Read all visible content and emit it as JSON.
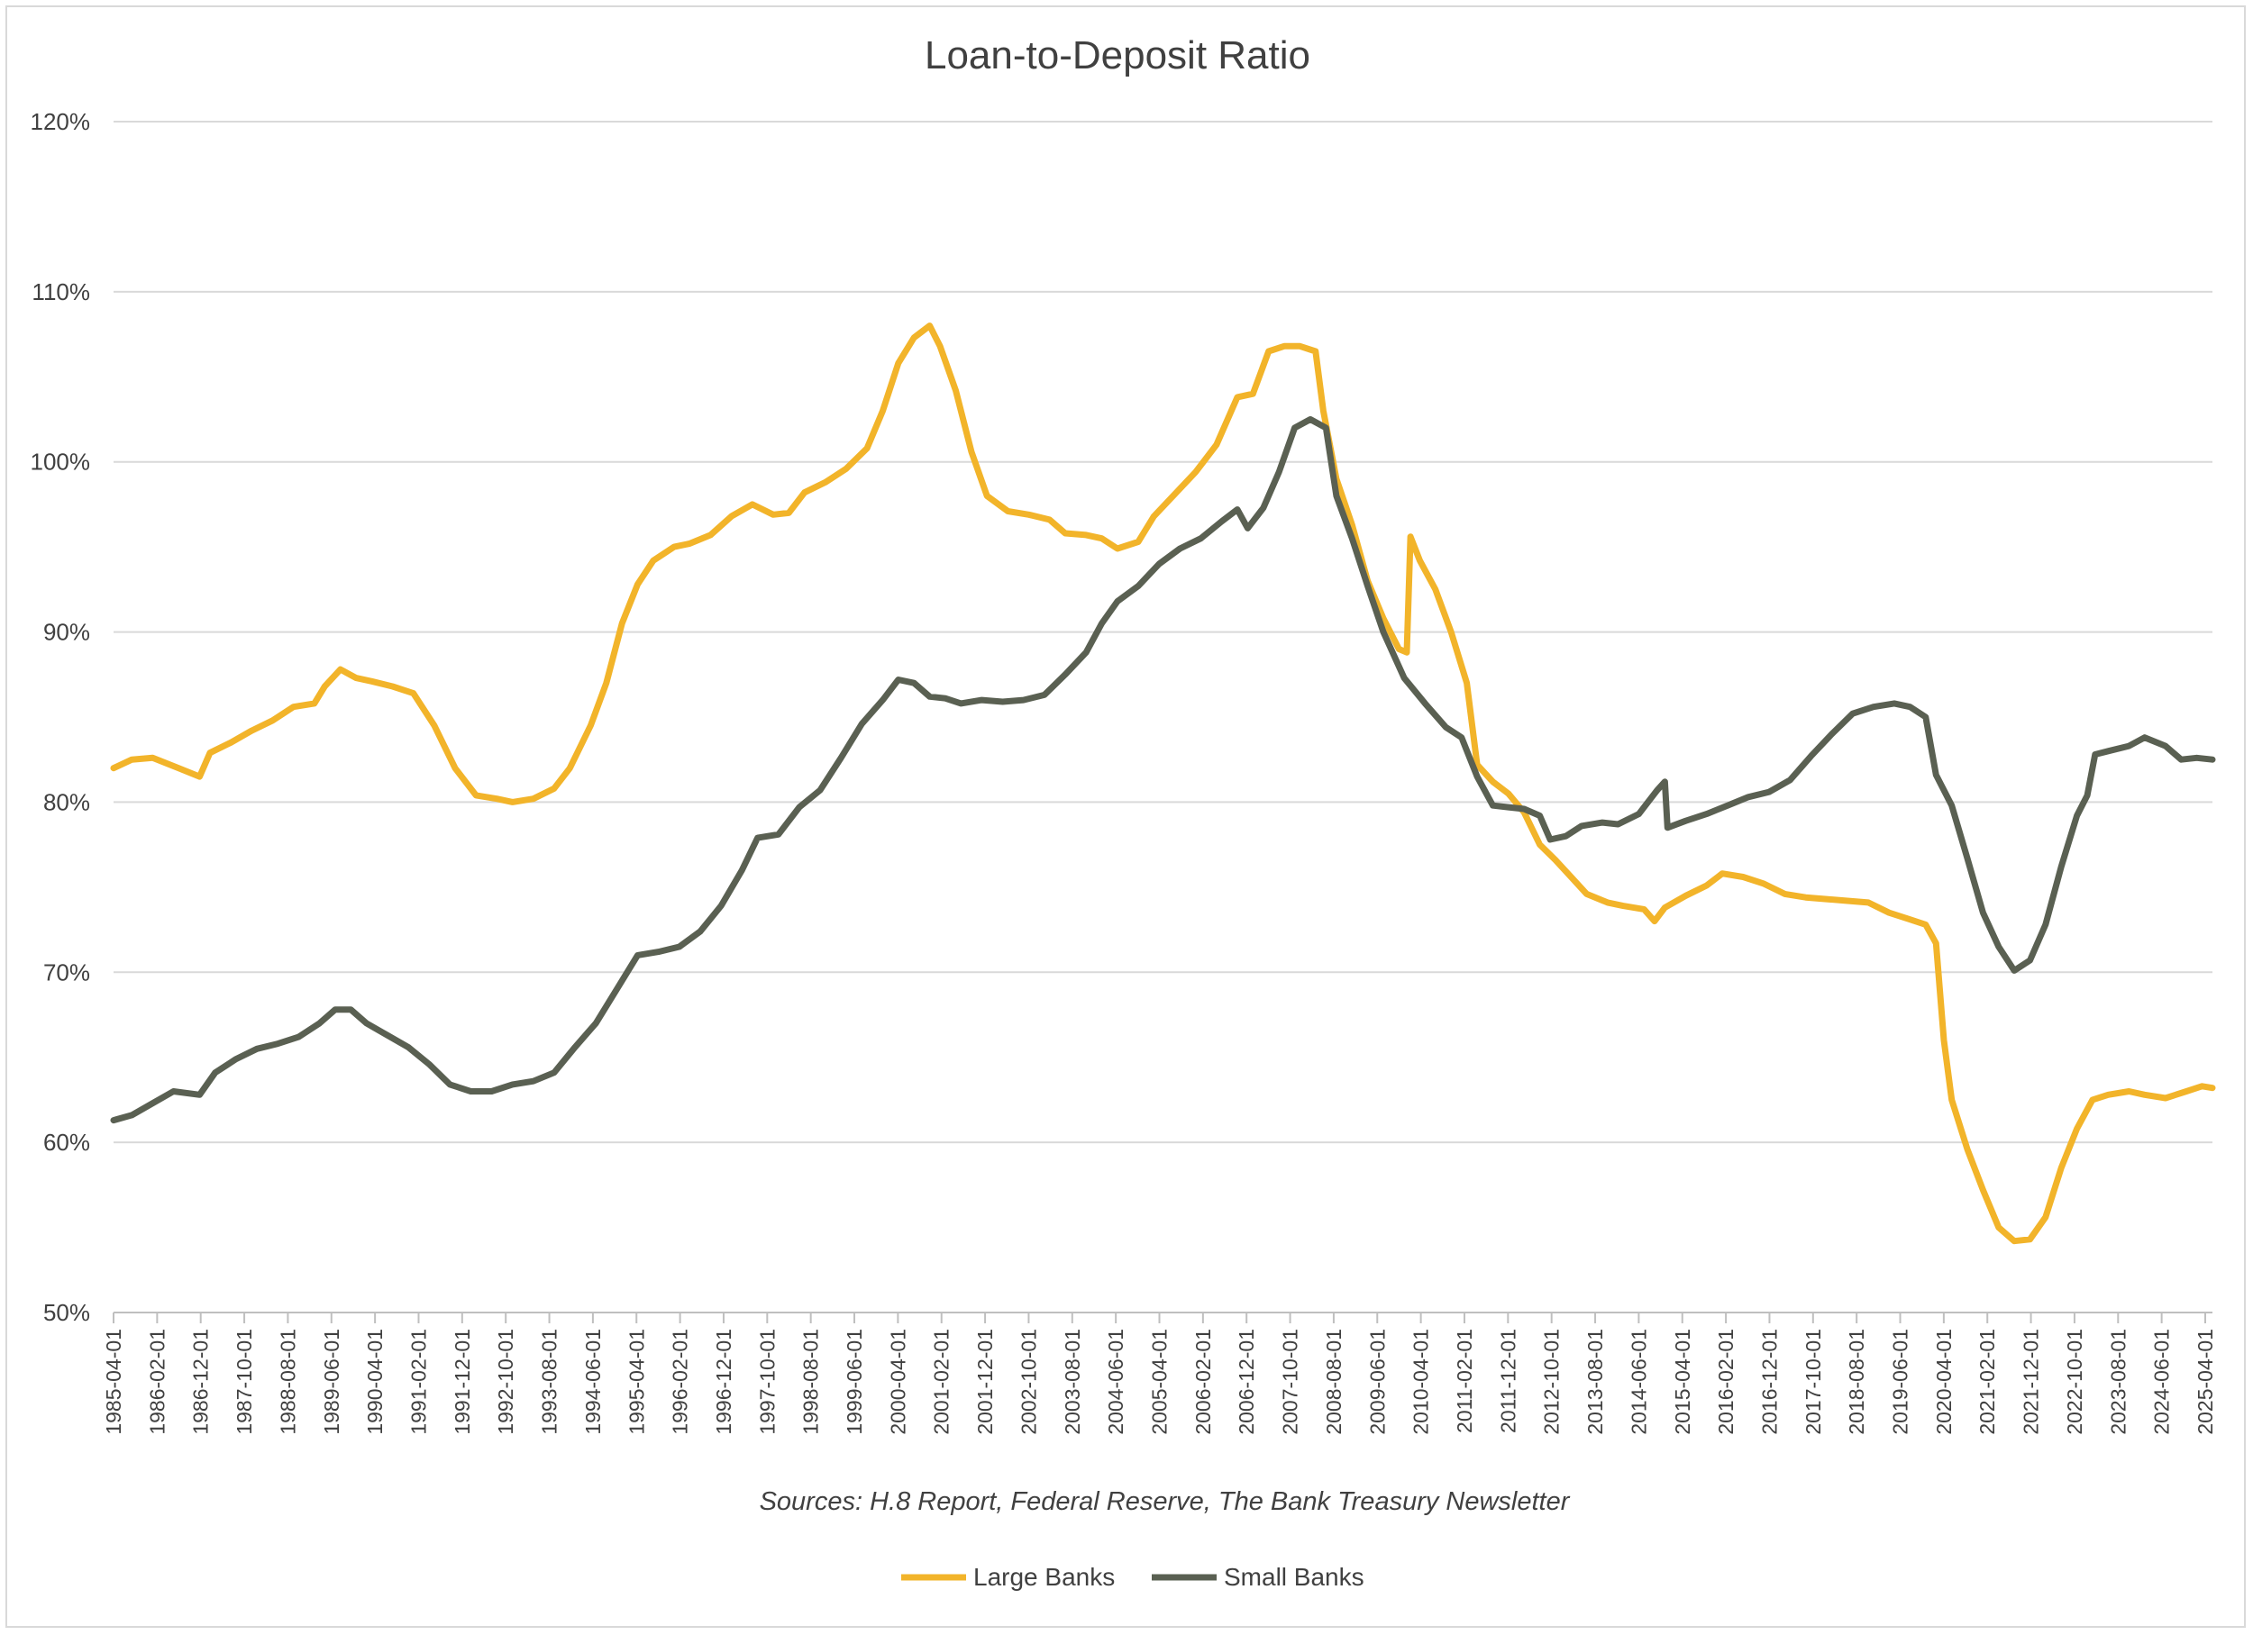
{
  "chart_data": {
    "type": "line",
    "title": "Loan-to-Deposit Ratio",
    "source": "Sources: H.8 Report, Federal Reserve, The Bank Treasury Newsletter",
    "ylim": [
      50,
      120
    ],
    "y_ticks": [
      50,
      60,
      70,
      80,
      90,
      100,
      110,
      120
    ],
    "y_tick_labels": [
      "50%",
      "60%",
      "70%",
      "80%",
      "90%",
      "100%",
      "110%",
      "120%"
    ],
    "x_range": [
      1985.25,
      2025.5
    ],
    "x_ticks": [
      "1985-04-01",
      "1986-02-01",
      "1986-12-01",
      "1987-10-01",
      "1988-08-01",
      "1989-06-01",
      "1990-04-01",
      "1991-02-01",
      "1991-12-01",
      "1992-10-01",
      "1993-08-01",
      "1994-06-01",
      "1995-04-01",
      "1996-02-01",
      "1996-12-01",
      "1997-10-01",
      "1998-08-01",
      "1999-06-01",
      "2000-04-01",
      "2001-02-01",
      "2001-12-01",
      "2002-10-01",
      "2003-08-01",
      "2004-06-01",
      "2005-04-01",
      "2006-02-01",
      "2006-12-01",
      "2007-10-01",
      "2008-08-01",
      "2009-06-01",
      "2010-04-01",
      "2011-02-01",
      "2011-12-01",
      "2012-10-01",
      "2013-08-01",
      "2014-06-01",
      "2015-04-01",
      "2016-02-01",
      "2016-12-01",
      "2017-10-01",
      "2018-08-01",
      "2019-06-01",
      "2020-04-01",
      "2021-02-01",
      "2021-12-01",
      "2022-10-01",
      "2023-08-01",
      "2024-06-01",
      "2025-04-01"
    ],
    "grid": true,
    "legend_position": "bottom",
    "series": [
      {
        "name": "Large Banks",
        "color": "#f2b42a",
        "points": [
          [
            1985.25,
            82.0
          ],
          [
            1985.6,
            82.5
          ],
          [
            1986.0,
            82.6
          ],
          [
            1986.5,
            82.0
          ],
          [
            1986.9,
            81.5
          ],
          [
            1987.1,
            82.9
          ],
          [
            1987.5,
            83.5
          ],
          [
            1987.9,
            84.2
          ],
          [
            1988.3,
            84.8
          ],
          [
            1988.7,
            85.6
          ],
          [
            1989.1,
            85.8
          ],
          [
            1989.3,
            86.8
          ],
          [
            1989.6,
            87.8
          ],
          [
            1989.9,
            87.3
          ],
          [
            1990.2,
            87.1
          ],
          [
            1990.6,
            86.8
          ],
          [
            1991.0,
            86.4
          ],
          [
            1991.4,
            84.5
          ],
          [
            1991.8,
            82.0
          ],
          [
            1992.2,
            80.4
          ],
          [
            1992.6,
            80.2
          ],
          [
            1992.9,
            80.0
          ],
          [
            1993.3,
            80.2
          ],
          [
            1993.7,
            80.8
          ],
          [
            1994.0,
            82.0
          ],
          [
            1994.4,
            84.5
          ],
          [
            1994.7,
            87.0
          ],
          [
            1995.0,
            90.5
          ],
          [
            1995.3,
            92.8
          ],
          [
            1995.6,
            94.2
          ],
          [
            1996.0,
            95.0
          ],
          [
            1996.3,
            95.2
          ],
          [
            1996.7,
            95.7
          ],
          [
            1997.1,
            96.8
          ],
          [
            1997.5,
            97.5
          ],
          [
            1997.9,
            96.9
          ],
          [
            1998.2,
            97.0
          ],
          [
            1998.5,
            98.2
          ],
          [
            1998.9,
            98.8
          ],
          [
            1999.3,
            99.6
          ],
          [
            1999.7,
            100.8
          ],
          [
            2000.0,
            103.0
          ],
          [
            2000.3,
            105.8
          ],
          [
            2000.6,
            107.3
          ],
          [
            2000.9,
            108.0
          ],
          [
            2001.1,
            106.8
          ],
          [
            2001.4,
            104.2
          ],
          [
            2001.7,
            100.6
          ],
          [
            2002.0,
            98.0
          ],
          [
            2002.4,
            97.1
          ],
          [
            2002.8,
            96.9
          ],
          [
            2003.2,
            96.6
          ],
          [
            2003.5,
            95.8
          ],
          [
            2003.9,
            95.7
          ],
          [
            2004.2,
            95.5
          ],
          [
            2004.5,
            94.9
          ],
          [
            2004.9,
            95.3
          ],
          [
            2005.2,
            96.8
          ],
          [
            2005.6,
            98.1
          ],
          [
            2006.0,
            99.4
          ],
          [
            2006.4,
            101.0
          ],
          [
            2006.8,
            103.8
          ],
          [
            2007.1,
            104.0
          ],
          [
            2007.4,
            106.5
          ],
          [
            2007.7,
            106.8
          ],
          [
            2008.0,
            106.8
          ],
          [
            2008.3,
            106.5
          ],
          [
            2008.45,
            103.0
          ],
          [
            2008.7,
            99.0
          ],
          [
            2009.0,
            96.3
          ],
          [
            2009.3,
            93.0
          ],
          [
            2009.6,
            90.8
          ],
          [
            2009.9,
            89.0
          ],
          [
            2010.05,
            88.8
          ],
          [
            2010.12,
            95.6
          ],
          [
            2010.3,
            94.2
          ],
          [
            2010.6,
            92.5
          ],
          [
            2010.9,
            90.0
          ],
          [
            2011.2,
            87.0
          ],
          [
            2011.4,
            82.2
          ],
          [
            2011.7,
            81.2
          ],
          [
            2012.0,
            80.5
          ],
          [
            2012.3,
            79.4
          ],
          [
            2012.6,
            77.5
          ],
          [
            2012.9,
            76.6
          ],
          [
            2013.2,
            75.6
          ],
          [
            2013.5,
            74.6
          ],
          [
            2013.9,
            74.1
          ],
          [
            2014.2,
            73.9
          ],
          [
            2014.6,
            73.7
          ],
          [
            2014.8,
            73.0
          ],
          [
            2015.0,
            73.8
          ],
          [
            2015.4,
            74.5
          ],
          [
            2015.8,
            75.1
          ],
          [
            2016.1,
            75.8
          ],
          [
            2016.5,
            75.6
          ],
          [
            2016.9,
            75.2
          ],
          [
            2017.3,
            74.6
          ],
          [
            2017.7,
            74.4
          ],
          [
            2018.1,
            74.3
          ],
          [
            2018.5,
            74.2
          ],
          [
            2018.9,
            74.1
          ],
          [
            2019.3,
            73.5
          ],
          [
            2019.7,
            73.1
          ],
          [
            2020.0,
            72.8
          ],
          [
            2020.2,
            71.7
          ],
          [
            2020.35,
            66.0
          ],
          [
            2020.5,
            62.5
          ],
          [
            2020.8,
            59.6
          ],
          [
            2021.1,
            57.2
          ],
          [
            2021.4,
            55.0
          ],
          [
            2021.7,
            54.2
          ],
          [
            2022.0,
            54.3
          ],
          [
            2022.3,
            55.6
          ],
          [
            2022.6,
            58.5
          ],
          [
            2022.9,
            60.8
          ],
          [
            2023.2,
            62.5
          ],
          [
            2023.5,
            62.8
          ],
          [
            2023.9,
            63.0
          ],
          [
            2024.2,
            62.8
          ],
          [
            2024.6,
            62.6
          ],
          [
            2025.0,
            63.0
          ],
          [
            2025.3,
            63.3
          ],
          [
            2025.5,
            63.2
          ]
        ]
      },
      {
        "name": "Small Banks",
        "color": "#5a6052",
        "points": [
          [
            1985.25,
            61.3
          ],
          [
            1985.6,
            61.6
          ],
          [
            1986.0,
            62.3
          ],
          [
            1986.4,
            63.0
          ],
          [
            1986.9,
            62.8
          ],
          [
            1987.2,
            64.1
          ],
          [
            1987.6,
            64.9
          ],
          [
            1988.0,
            65.5
          ],
          [
            1988.4,
            65.8
          ],
          [
            1988.8,
            66.2
          ],
          [
            1989.2,
            67.0
          ],
          [
            1989.5,
            67.8
          ],
          [
            1989.8,
            67.8
          ],
          [
            1990.1,
            67.0
          ],
          [
            1990.5,
            66.3
          ],
          [
            1990.9,
            65.6
          ],
          [
            1991.3,
            64.6
          ],
          [
            1991.7,
            63.4
          ],
          [
            1992.1,
            63.0
          ],
          [
            1992.5,
            63.0
          ],
          [
            1992.9,
            63.4
          ],
          [
            1993.3,
            63.6
          ],
          [
            1993.7,
            64.1
          ],
          [
            1994.1,
            65.6
          ],
          [
            1994.5,
            67.0
          ],
          [
            1994.9,
            69.0
          ],
          [
            1995.3,
            71.0
          ],
          [
            1995.7,
            71.2
          ],
          [
            1996.1,
            71.5
          ],
          [
            1996.5,
            72.4
          ],
          [
            1996.9,
            73.9
          ],
          [
            1997.3,
            76.0
          ],
          [
            1997.6,
            77.9
          ],
          [
            1998.0,
            78.1
          ],
          [
            1998.4,
            79.7
          ],
          [
            1998.8,
            80.7
          ],
          [
            1999.2,
            82.6
          ],
          [
            1999.6,
            84.6
          ],
          [
            2000.0,
            86.0
          ],
          [
            2000.3,
            87.2
          ],
          [
            2000.6,
            87.0
          ],
          [
            2000.9,
            86.2
          ],
          [
            2001.2,
            86.1
          ],
          [
            2001.5,
            85.8
          ],
          [
            2001.9,
            86.0
          ],
          [
            2002.3,
            85.9
          ],
          [
            2002.7,
            86.0
          ],
          [
            2003.1,
            86.3
          ],
          [
            2003.5,
            87.5
          ],
          [
            2003.9,
            88.8
          ],
          [
            2004.2,
            90.5
          ],
          [
            2004.5,
            91.8
          ],
          [
            2004.9,
            92.7
          ],
          [
            2005.3,
            94.0
          ],
          [
            2005.7,
            94.9
          ],
          [
            2006.1,
            95.5
          ],
          [
            2006.5,
            96.5
          ],
          [
            2006.8,
            97.2
          ],
          [
            2007.0,
            96.1
          ],
          [
            2007.3,
            97.3
          ],
          [
            2007.6,
            99.4
          ],
          [
            2007.9,
            102.0
          ],
          [
            2008.2,
            102.5
          ],
          [
            2008.5,
            102.0
          ],
          [
            2008.7,
            98.0
          ],
          [
            2009.0,
            95.5
          ],
          [
            2009.3,
            92.7
          ],
          [
            2009.6,
            90.0
          ],
          [
            2010.0,
            87.3
          ],
          [
            2010.4,
            85.8
          ],
          [
            2010.8,
            84.4
          ],
          [
            2011.1,
            83.8
          ],
          [
            2011.4,
            81.5
          ],
          [
            2011.7,
            79.8
          ],
          [
            2012.0,
            79.7
          ],
          [
            2012.3,
            79.6
          ],
          [
            2012.6,
            79.2
          ],
          [
            2012.8,
            77.8
          ],
          [
            2013.1,
            78.0
          ],
          [
            2013.4,
            78.6
          ],
          [
            2013.8,
            78.8
          ],
          [
            2014.1,
            78.7
          ],
          [
            2014.5,
            79.3
          ],
          [
            2014.85,
            80.7
          ],
          [
            2015.0,
            81.2
          ],
          [
            2015.05,
            78.5
          ],
          [
            2015.4,
            78.9
          ],
          [
            2015.8,
            79.3
          ],
          [
            2016.2,
            79.8
          ],
          [
            2016.6,
            80.3
          ],
          [
            2017.0,
            80.6
          ],
          [
            2017.4,
            81.3
          ],
          [
            2017.8,
            82.7
          ],
          [
            2018.2,
            84.0
          ],
          [
            2018.6,
            85.2
          ],
          [
            2019.0,
            85.6
          ],
          [
            2019.4,
            85.8
          ],
          [
            2019.7,
            85.6
          ],
          [
            2020.0,
            85.0
          ],
          [
            2020.2,
            81.6
          ],
          [
            2020.5,
            79.8
          ],
          [
            2020.8,
            76.7
          ],
          [
            2021.1,
            73.5
          ],
          [
            2021.4,
            71.5
          ],
          [
            2021.7,
            70.1
          ],
          [
            2022.0,
            70.7
          ],
          [
            2022.3,
            72.8
          ],
          [
            2022.6,
            76.2
          ],
          [
            2022.9,
            79.2
          ],
          [
            2023.1,
            80.4
          ],
          [
            2023.25,
            82.8
          ],
          [
            2023.5,
            83.0
          ],
          [
            2023.9,
            83.3
          ],
          [
            2024.2,
            83.8
          ],
          [
            2024.6,
            83.3
          ],
          [
            2024.9,
            82.5
          ],
          [
            2025.2,
            82.6
          ],
          [
            2025.5,
            82.5
          ]
        ]
      }
    ]
  }
}
